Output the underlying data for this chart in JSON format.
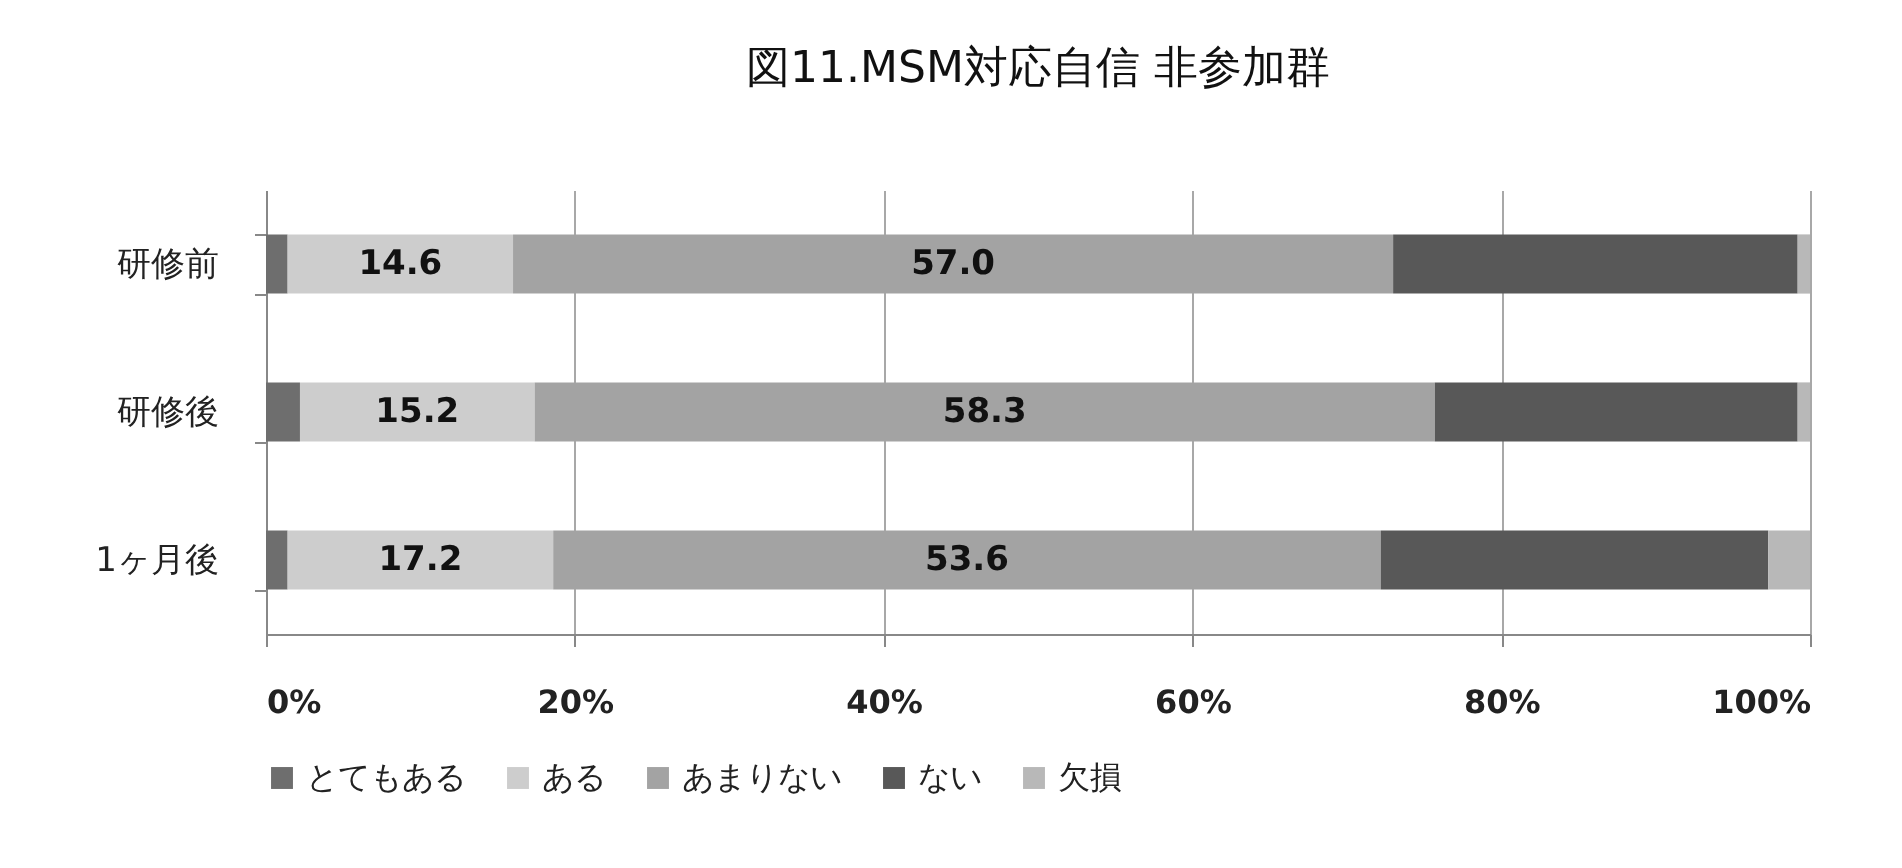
{
  "chart_data": {
    "type": "bar",
    "orientation": "horizontal",
    "stacked": true,
    "title": "図11.MSM対応自信 非参加群",
    "categories": [
      "研修前",
      "研修後",
      "1ヶ月後"
    ],
    "series": [
      {
        "name": "とてもある",
        "color": "#6e6e6e",
        "values": [
          1.4,
          2.2,
          1.4
        ]
      },
      {
        "name": "ある",
        "color": "#cdcdcd",
        "values": [
          14.6,
          15.2,
          17.2
        ],
        "value_labels": [
          "14.6",
          "15.2",
          "17.2"
        ]
      },
      {
        "name": "あまりない",
        "color": "#a3a3a3",
        "values": [
          57.0,
          58.3,
          53.6
        ],
        "value_labels": [
          "57.0",
          "58.3",
          "53.6"
        ]
      },
      {
        "name": "ない",
        "color": "#585858",
        "values": [
          26.2,
          23.5,
          25.1
        ]
      },
      {
        "name": "欠損",
        "color": "#b8b8b8",
        "values": [
          0.8,
          0.8,
          2.7
        ]
      }
    ],
    "xlim": [
      0,
      100
    ],
    "xticks": [
      {
        "value": 0,
        "label": "0%"
      },
      {
        "value": 20,
        "label": "20%"
      },
      {
        "value": 40,
        "label": "40%"
      },
      {
        "value": 60,
        "label": "60%"
      },
      {
        "value": 80,
        "label": "80%"
      },
      {
        "value": 100,
        "label": "100%"
      }
    ],
    "grid": "x",
    "legend": "bottom"
  }
}
